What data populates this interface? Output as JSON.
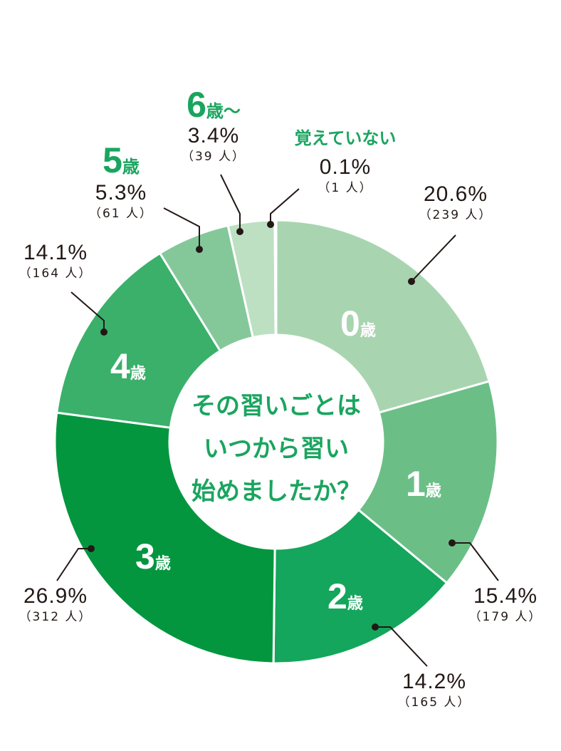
{
  "chart_data": {
    "type": "pie",
    "donut": true,
    "title": "その習いごとはいつから習い始めましたか？",
    "categories": [
      "0歳",
      "1歳",
      "2歳",
      "3歳",
      "4歳",
      "5歳",
      "6歳〜",
      "覚えていない"
    ],
    "values": [
      20.6,
      15.4,
      14.2,
      26.9,
      14.1,
      5.3,
      3.4,
      0.1
    ],
    "counts": [
      239,
      179,
      165,
      312,
      164,
      61,
      39,
      1
    ],
    "colors": [
      "#a8d5b0",
      "#6bbf86",
      "#14a65c",
      "#03963f",
      "#3ab06a",
      "#84c89a",
      "#bde0c3",
      "#d3ead6"
    ]
  },
  "center": {
    "line1": "その習いごとは",
    "line2": "いつから習い",
    "line3": "始めましたか？"
  },
  "labels": {
    "s0": {
      "num": "0",
      "unit": "歳",
      "pct": "20.6%",
      "cnt": "（239 人）"
    },
    "s1": {
      "num": "1",
      "unit": "歳",
      "pct": "15.4%",
      "cnt": "（179 人）"
    },
    "s2": {
      "num": "2",
      "unit": "歳",
      "pct": "14.2%",
      "cnt": "（165 人）"
    },
    "s3": {
      "num": "3",
      "unit": "歳",
      "pct": "26.9%",
      "cnt": "（312 人）"
    },
    "s4": {
      "num": "4",
      "unit": "歳",
      "pct": "14.1%",
      "cnt": "（164 人）"
    },
    "s5": {
      "num": "5",
      "unit": "歳",
      "pct": "5.3%",
      "cnt": "（61 人）"
    },
    "s6": {
      "num": "6",
      "unit": "歳〜",
      "pct": "3.4%",
      "cnt": "（39 人）"
    },
    "s7": {
      "cat": "覚えていない",
      "pct": "0.1%",
      "cnt": "（1 人）"
    }
  }
}
